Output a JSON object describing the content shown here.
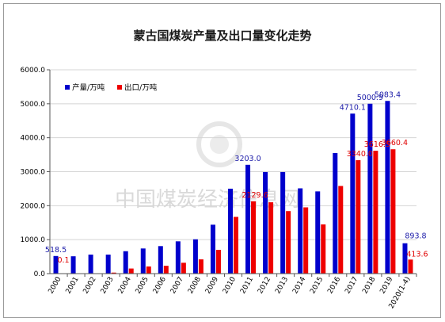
{
  "colors": {
    "production": "#0000cc",
    "export": "#ee0000"
  },
  "chart_data": {
    "type": "bar",
    "title": "蒙古国煤炭产量及出口量变化走势",
    "xlabel": "",
    "ylabel": "",
    "ylim": [
      0,
      6000
    ],
    "yticks": [
      "0.0",
      "1000.0",
      "2000.0",
      "3000.0",
      "4000.0",
      "5000.0",
      "6000.0"
    ],
    "grid": true,
    "legend_position": "top-left",
    "watermark": "中国煤炭经济信息网",
    "categories": [
      "2000",
      "2001",
      "2002",
      "2003",
      "2004",
      "2005",
      "2006",
      "2007",
      "2008",
      "2009",
      "2010",
      "2011",
      "2012",
      "2013",
      "2014",
      "2015",
      "2016",
      "2017",
      "2018",
      "2019",
      "2020(1-4)"
    ],
    "series": [
      {
        "name": "产量/万吨",
        "values": [
          518.5,
          510,
          560,
          560,
          660,
          740,
          810,
          950,
          1010,
          1440,
          2500,
          3203.0,
          2990,
          2990,
          2510,
          2420,
          3550,
          4710.1,
          5000.9,
          5083.4,
          893.8
        ],
        "labels": [
          "518.5",
          "",
          "",
          "",
          "",
          "",
          "",
          "",
          "",
          "",
          "",
          "3203.0",
          "",
          "",
          "",
          "",
          "",
          "4710.1",
          "5000.9",
          "5083.4",
          "893.8"
        ]
      },
      {
        "name": "出口/万吨",
        "values": [
          0.1,
          0,
          0,
          30,
          150,
          210,
          230,
          320,
          420,
          700,
          1670,
          2129.6,
          2100,
          1840,
          1950,
          1450,
          2580,
          3340.0,
          3616.5,
          3660.4,
          413.6
        ],
        "labels": [
          "0.1",
          "",
          "",
          "",
          "",
          "",
          "",
          "",
          "",
          "",
          "",
          "2129.6",
          "",
          "",
          "",
          "",
          "",
          "3340.0",
          "3616.5",
          "3660.4",
          "413.6"
        ]
      }
    ]
  }
}
